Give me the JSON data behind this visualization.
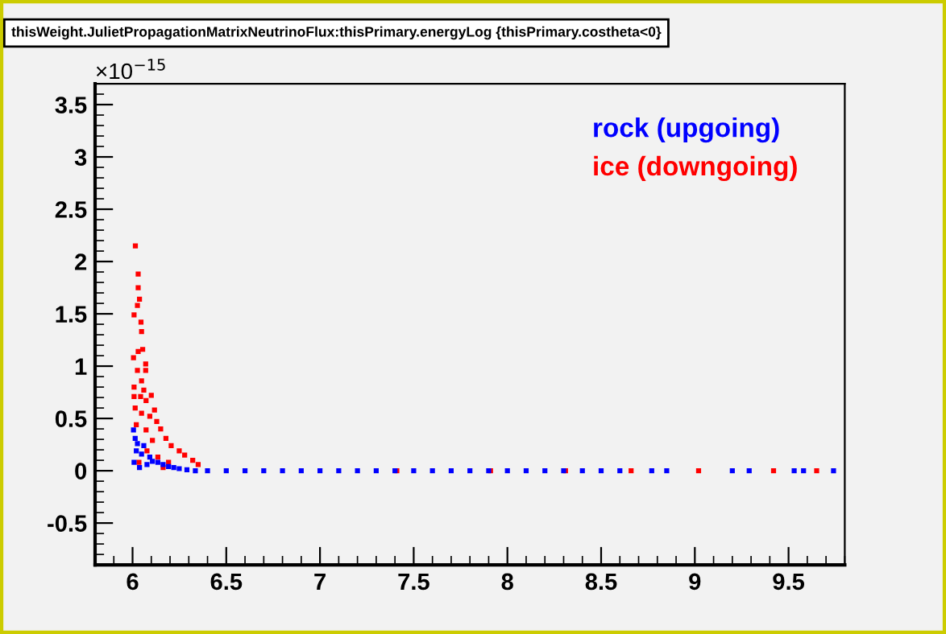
{
  "chart_data": {
    "type": "scatter",
    "title": "thisWeight.JulietPropagationMatrixNeutrinoFlux:thisPrimary.energyLog {thisPrimary.costheta<0}",
    "annotations": [
      "×10$^{−15}$"
    ],
    "xlim": [
      5.8,
      9.8
    ],
    "xticks": [
      6,
      6.5,
      7,
      7.5,
      8,
      8.5,
      9,
      9.5
    ],
    "ylim": [
      -0.9,
      3.7
    ],
    "yticks": [
      -0.5,
      0,
      0.5,
      1,
      1.5,
      2,
      2.5,
      3,
      3.5
    ],
    "grid": false,
    "legend": "top right",
    "marker": "square",
    "series": [
      {
        "name": "ice (downgoing)",
        "color": "#ff0000",
        "x": [
          6.015,
          6.03,
          6.03,
          6.037,
          6.026,
          6.008,
          6.045,
          6.048,
          6.054,
          6.03,
          6.005,
          6.07,
          6.026,
          6.07,
          6.048,
          6.008,
          6.06,
          6.008,
          6.043,
          6.072,
          6.1,
          6.014,
          6.117,
          6.048,
          6.092,
          6.129,
          6.02,
          6.15,
          6.072,
          6.178,
          6.106,
          6.206,
          6.249,
          6.278,
          6.321,
          6.35,
          6.135,
          6.192,
          6.077,
          6.163,
          6.034,
          7.41,
          7.91,
          8.31,
          8.66,
          9.02,
          9.42,
          9.65
        ],
        "values": [
          2.15,
          1.88,
          1.75,
          1.64,
          1.58,
          1.49,
          1.42,
          1.33,
          1.16,
          1.14,
          1.08,
          1.02,
          0.96,
          0.96,
          0.86,
          0.8,
          0.77,
          0.71,
          0.71,
          0.67,
          0.72,
          0.6,
          0.58,
          0.55,
          0.52,
          0.47,
          0.44,
          0.4,
          0.39,
          0.31,
          0.29,
          0.24,
          0.19,
          0.15,
          0.1,
          0.06,
          0.13,
          0.08,
          0.19,
          0.03,
          0.08,
          0,
          0,
          0,
          0,
          0,
          0,
          0
        ]
      },
      {
        "name": "rock (upgoing)",
        "color": "#0000ff",
        "x": [
          6.005,
          6.014,
          6.026,
          6.06,
          6.048,
          6.092,
          6.106,
          6.135,
          6.163,
          6.192,
          6.22,
          6.249,
          6.29,
          6.335,
          6.02,
          6.077,
          6.008,
          6.037,
          6.4,
          6.5,
          6.6,
          6.7,
          6.8,
          6.9,
          7.0,
          7.1,
          7.2,
          7.3,
          7.4,
          7.5,
          7.6,
          7.7,
          7.8,
          7.9,
          8.0,
          8.1,
          8.2,
          8.3,
          8.4,
          8.5,
          8.6,
          8.77,
          8.85,
          9.2,
          9.29,
          9.53,
          9.58,
          9.74
        ],
        "values": [
          0.39,
          0.31,
          0.26,
          0.24,
          0.16,
          0.13,
          0.09,
          0.08,
          0.06,
          0.04,
          0.03,
          0.02,
          0.01,
          0,
          0.19,
          0.06,
          0.08,
          0.03,
          0,
          0,
          0,
          0,
          0,
          0,
          0,
          0,
          0,
          0,
          0,
          0,
          0,
          0,
          0,
          0,
          0,
          0,
          0,
          0,
          0,
          0,
          0,
          0,
          0,
          0,
          0,
          0,
          0,
          0
        ]
      }
    ]
  }
}
